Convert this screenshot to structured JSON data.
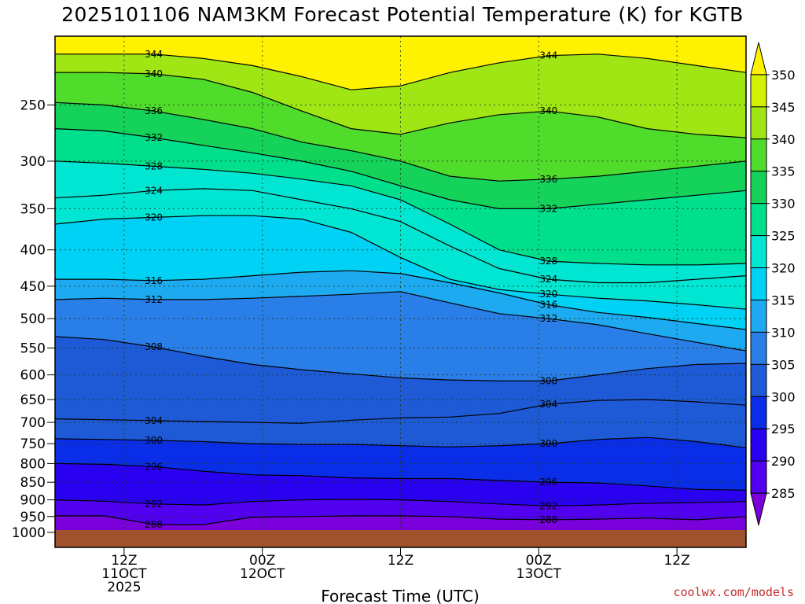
{
  "title": "2025101106 NAM3KM Forecast Potential Temperature (K) for KGTB",
  "credit": "coolwx.com/models",
  "chart_data": {
    "type": "heatmap",
    "title": "2025101106 NAM3KM Forecast Potential Temperature (K) for KGTB",
    "xlabel": "Forecast Time (UTC)",
    "ylabel": "",
    "y_scale": "log-pressure (hPa)",
    "y_ticks": [
      250,
      300,
      350,
      400,
      450,
      500,
      550,
      600,
      650,
      700,
      750,
      800,
      850,
      900,
      950,
      1000
    ],
    "y_tick_labels": [
      "250",
      "300",
      "350",
      "400",
      "450",
      "500",
      "550",
      "600",
      "650",
      "700",
      "750",
      "800",
      "850",
      "900",
      "950",
      "1000"
    ],
    "ylim": [
      1050,
      200
    ],
    "x_ticks": [
      {
        "time": "2025-10-11 12Z",
        "label_lines": [
          "12Z",
          "11OCT",
          "2025"
        ]
      },
      {
        "time": "2025-10-12 00Z",
        "label_lines": [
          "00Z",
          "12OCT"
        ]
      },
      {
        "time": "2025-10-12 12Z",
        "label_lines": [
          "12Z"
        ]
      },
      {
        "time": "2025-10-13 00Z",
        "label_lines": [
          "00Z",
          "13OCT"
        ]
      },
      {
        "time": "2025-10-13 12Z",
        "label_lines": [
          "12Z"
        ]
      }
    ],
    "xlim": [
      "2025-10-11 06Z",
      "2025-10-13 18Z"
    ],
    "colorbar": {
      "units": "K",
      "levels": [
        285,
        290,
        295,
        300,
        305,
        310,
        315,
        320,
        325,
        330,
        335,
        340,
        345,
        350
      ],
      "labels": [
        "350",
        "345",
        "340",
        "335",
        "330",
        "325",
        "320",
        "315",
        "310",
        "305",
        "300",
        "295",
        "290",
        "285"
      ],
      "colors": [
        "#7a00dc",
        "#5200f0",
        "#2a00f0",
        "#0a2ee8",
        "#1e5ad6",
        "#2a7ee8",
        "#1eaaf0",
        "#00d2f5",
        "#00e6d2",
        "#00e08c",
        "#14d25a",
        "#50dc2a",
        "#a0e614",
        "#d2f000",
        "#fff200"
      ]
    },
    "series": [
      {
        "name": "",
        "values": [
          {
            "theta": 288,
            "pressure": [
              948,
              948,
              975,
              975,
              952,
              950,
              948,
              948,
              950,
              958,
              960,
              958,
              955,
              960,
              950
            ]
          },
          {
            "theta": 292,
            "pressure": [
              900,
              904,
              912,
              915,
              905,
              900,
              898,
              900,
              905,
              912,
              918,
              915,
              910,
              908,
              905
            ]
          },
          {
            "theta": 296,
            "pressure": [
              800,
              802,
              808,
              820,
              830,
              832,
              838,
              840,
              840,
              845,
              850,
              852,
              860,
              870,
              872
            ]
          },
          {
            "theta": 300,
            "pressure": [
              738,
              740,
              742,
              745,
              750,
              752,
              752,
              755,
              758,
              755,
              750,
              740,
              735,
              745,
              760
            ]
          },
          {
            "theta": 304,
            "pressure": [
              692,
              694,
              696,
              698,
              700,
              702,
              695,
              690,
              688,
              680,
              660,
              652,
              650,
              655,
              662
            ]
          },
          {
            "theta": 308,
            "pressure": [
              530,
              535,
              548,
              565,
              580,
              590,
              598,
              606,
              610,
              612,
              612,
              600,
              588,
              580,
              578
            ]
          },
          {
            "theta": 312,
            "pressure": [
              470,
              468,
              470,
              470,
              468,
              465,
              462,
              458,
              475,
              492,
              500,
              510,
              525,
              540,
              555
            ]
          },
          {
            "theta": 316,
            "pressure": [
              440,
              440,
              442,
              440,
              435,
              430,
              428,
              432,
              445,
              460,
              478,
              490,
              498,
              508,
              518
            ]
          },
          {
            "theta": 320,
            "pressure": [
              368,
              362,
              360,
              358,
              358,
              362,
              378,
              410,
              440,
              455,
              462,
              468,
              472,
              478,
              485
            ]
          },
          {
            "theta": 324,
            "pressure": [
              338,
              335,
              330,
              328,
              330,
              340,
              350,
              365,
              395,
              425,
              440,
              445,
              445,
              440,
              435
            ]
          },
          {
            "theta": 328,
            "pressure": [
              300,
              302,
              305,
              308,
              312,
              318,
              325,
              340,
              368,
              400,
              415,
              418,
              420,
              420,
              418
            ]
          },
          {
            "theta": 332,
            "pressure": [
              270,
              272,
              278,
              285,
              292,
              300,
              310,
              325,
              340,
              350,
              350,
              345,
              340,
              335,
              330
            ]
          },
          {
            "theta": 336,
            "pressure": [
              248,
              250,
              255,
              262,
              270,
              282,
              290,
              300,
              315,
              320,
              318,
              315,
              310,
              305,
              300
            ]
          },
          {
            "theta": 340,
            "pressure": [
              225,
              225,
              226,
              230,
              240,
              255,
              270,
              275,
              265,
              258,
              255,
              260,
              270,
              275,
              278
            ]
          },
          {
            "theta": 344,
            "pressure": [
              212,
              212,
              212,
              215,
              220,
              228,
              238,
              235,
              225,
              218,
              213,
              212,
              215,
              220,
              225
            ]
          }
        ]
      }
    ],
    "grid": true,
    "legend": "right colorbar"
  },
  "axis_labels": {
    "xlabel": "Forecast Time (UTC)"
  }
}
